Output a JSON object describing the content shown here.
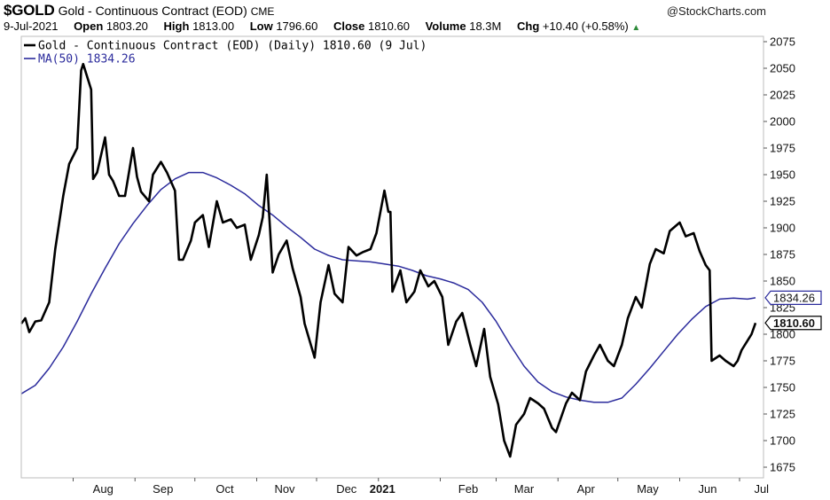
{
  "header": {
    "symbol": "$GOLD",
    "name": "Gold - Continuous Contract (EOD)",
    "exchange": "CME",
    "brand": "@StockCharts.com",
    "date": "9-Jul-2021",
    "open_label": "Open",
    "open_value": "1803.20",
    "high_label": "High",
    "high_value": "1813.00",
    "low_label": "Low",
    "low_value": "1796.60",
    "close_label": "Close",
    "close_value": "1810.60",
    "volume_label": "Volume",
    "volume_value": "18.3M",
    "chg_label": "Chg",
    "chg_value": "+10.40 (+0.58%)",
    "up_arrow": "▲"
  },
  "chart_data": {
    "type": "line",
    "legend_position": "top-left",
    "grid": false,
    "ylim": [
      1665,
      2080
    ],
    "y_ticks": [
      1675,
      1700,
      1725,
      1750,
      1775,
      1800,
      1825,
      1850,
      1875,
      1900,
      1925,
      1950,
      1975,
      2000,
      2025,
      2050,
      2075
    ],
    "x_ticks": [
      "Aug",
      "Sep",
      "Oct",
      "Nov",
      "Dec",
      "2021",
      "Feb",
      "Mar",
      "Apr",
      "May",
      "Jun",
      "Jul"
    ],
    "x_ticks_bold": [
      "2021"
    ],
    "legend": [
      {
        "label": "Gold - Continuous Contract (EOD) (Daily) 1810.60 (9 Jul)",
        "color": "#000000"
      },
      {
        "label": "MA(50) 1834.26",
        "color": "#2b2b9c"
      }
    ],
    "price_labels": [
      {
        "text": "1834.26",
        "value": 1834.26,
        "color": "#2b2b9c",
        "bold": false
      },
      {
        "text": "1810.60",
        "value": 1810.6,
        "color": "#000000",
        "bold": true
      }
    ],
    "series": [
      {
        "name": "Gold - Continuous Contract (EOD) (Daily)",
        "color": "#000000",
        "x": [
          "2020-07-06",
          "2020-07-08",
          "2020-07-10",
          "2020-07-13",
          "2020-07-16",
          "2020-07-20",
          "2020-07-23",
          "2020-07-27",
          "2020-07-30",
          "2020-08-03",
          "2020-08-05",
          "2020-08-06",
          "2020-08-10",
          "2020-08-11",
          "2020-08-13",
          "2020-08-17",
          "2020-08-19",
          "2020-08-21",
          "2020-08-24",
          "2020-08-27",
          "2020-08-31",
          "2020-09-02",
          "2020-09-04",
          "2020-09-08",
          "2020-09-10",
          "2020-09-14",
          "2020-09-17",
          "2020-09-21",
          "2020-09-23",
          "2020-09-25",
          "2020-09-29",
          "2020-10-01",
          "2020-10-05",
          "2020-10-08",
          "2020-10-12",
          "2020-10-15",
          "2020-10-19",
          "2020-10-22",
          "2020-10-26",
          "2020-10-29",
          "2020-11-02",
          "2020-11-04",
          "2020-11-06",
          "2020-11-09",
          "2020-11-12",
          "2020-11-16",
          "2020-11-19",
          "2020-11-23",
          "2020-11-25",
          "2020-11-30",
          "2020-12-03",
          "2020-12-07",
          "2020-12-10",
          "2020-12-14",
          "2020-12-17",
          "2020-12-21",
          "2020-12-24",
          "2020-12-28",
          "2020-12-31",
          "2021-01-04",
          "2021-01-06",
          "2021-01-07",
          "2021-01-08",
          "2021-01-12",
          "2021-01-15",
          "2021-01-19",
          "2021-01-22",
          "2021-01-26",
          "2021-01-29",
          "2021-02-02",
          "2021-02-05",
          "2021-02-09",
          "2021-02-12",
          "2021-02-16",
          "2021-02-19",
          "2021-02-23",
          "2021-02-26",
          "2021-03-02",
          "2021-03-05",
          "2021-03-08",
          "2021-03-11",
          "2021-03-15",
          "2021-03-18",
          "2021-03-22",
          "2021-03-25",
          "2021-03-29",
          "2021-03-31",
          "2021-04-05",
          "2021-04-08",
          "2021-04-12",
          "2021-04-15",
          "2021-04-19",
          "2021-04-22",
          "2021-04-26",
          "2021-04-29",
          "2021-05-03",
          "2021-05-06",
          "2021-05-10",
          "2021-05-13",
          "2021-05-17",
          "2021-05-20",
          "2021-05-24",
          "2021-05-27",
          "2021-06-01",
          "2021-06-04",
          "2021-06-08",
          "2021-06-11",
          "2021-06-14",
          "2021-06-16",
          "2021-06-17",
          "2021-06-21",
          "2021-06-24",
          "2021-06-28",
          "2021-06-30",
          "2021-07-02",
          "2021-07-07",
          "2021-07-09"
        ],
        "values": [
          1810,
          1815,
          1802,
          1812,
          1813,
          1830,
          1880,
          1930,
          1960,
          1975,
          2048,
          2054,
          2030,
          1946,
          1952,
          1985,
          1950,
          1944,
          1930,
          1930,
          1975,
          1948,
          1934,
          1925,
          1950,
          1962,
          1952,
          1935,
          1870,
          1870,
          1888,
          1905,
          1912,
          1882,
          1925,
          1905,
          1908,
          1900,
          1903,
          1870,
          1893,
          1910,
          1950,
          1858,
          1875,
          1888,
          1862,
          1835,
          1810,
          1778,
          1830,
          1865,
          1838,
          1830,
          1882,
          1874,
          1877,
          1880,
          1895,
          1935,
          1915,
          1915,
          1840,
          1860,
          1830,
          1840,
          1860,
          1845,
          1850,
          1835,
          1790,
          1812,
          1820,
          1790,
          1770,
          1805,
          1760,
          1734,
          1700,
          1685,
          1715,
          1725,
          1740,
          1735,
          1730,
          1712,
          1708,
          1735,
          1745,
          1738,
          1765,
          1780,
          1790,
          1775,
          1770,
          1790,
          1815,
          1835,
          1825,
          1866,
          1880,
          1876,
          1897,
          1905,
          1892,
          1895,
          1878,
          1865,
          1860,
          1775,
          1780,
          1775,
          1770,
          1775,
          1785,
          1800,
          1810.6
        ]
      },
      {
        "name": "MA(50)",
        "color": "#2b2b9c",
        "x": [
          "2020-07-06",
          "2020-07-13",
          "2020-07-20",
          "2020-07-27",
          "2020-08-03",
          "2020-08-10",
          "2020-08-17",
          "2020-08-24",
          "2020-08-31",
          "2020-09-07",
          "2020-09-14",
          "2020-09-21",
          "2020-09-28",
          "2020-10-05",
          "2020-10-12",
          "2020-10-19",
          "2020-10-26",
          "2020-11-02",
          "2020-11-09",
          "2020-11-16",
          "2020-11-23",
          "2020-11-30",
          "2020-12-07",
          "2020-12-14",
          "2020-12-21",
          "2020-12-28",
          "2021-01-04",
          "2021-01-11",
          "2021-01-18",
          "2021-01-25",
          "2021-02-01",
          "2021-02-08",
          "2021-02-15",
          "2021-02-22",
          "2021-03-01",
          "2021-03-08",
          "2021-03-15",
          "2021-03-22",
          "2021-03-29",
          "2021-04-05",
          "2021-04-12",
          "2021-04-19",
          "2021-04-26",
          "2021-05-03",
          "2021-05-10",
          "2021-05-17",
          "2021-05-24",
          "2021-05-31",
          "2021-06-07",
          "2021-06-14",
          "2021-06-21",
          "2021-06-28",
          "2021-07-05",
          "2021-07-09"
        ],
        "values": [
          1744,
          1752,
          1768,
          1788,
          1812,
          1838,
          1862,
          1885,
          1904,
          1921,
          1936,
          1946,
          1952,
          1952,
          1947,
          1940,
          1932,
          1921,
          1912,
          1901,
          1891,
          1880,
          1874,
          1870,
          1869,
          1868,
          1866,
          1864,
          1860,
          1855,
          1852,
          1848,
          1842,
          1830,
          1812,
          1790,
          1770,
          1755,
          1746,
          1741,
          1738,
          1736,
          1736,
          1740,
          1753,
          1768,
          1784,
          1800,
          1814,
          1826,
          1833,
          1834,
          1833,
          1834.26
        ]
      }
    ]
  }
}
